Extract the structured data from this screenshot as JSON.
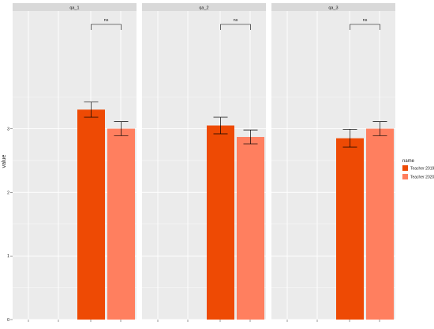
{
  "chart_data": {
    "type": "bar",
    "facets": [
      "qa_1",
      "qa_2",
      "qa_3"
    ],
    "ylabel": "value",
    "ylim": [
      0,
      4.85
    ],
    "yticks": [
      0,
      1,
      2,
      3
    ],
    "legend": {
      "title": "name",
      "position": "right",
      "entries": [
        "Teacher 2019",
        "Teacher 2020"
      ]
    },
    "colors": {
      "Teacher 2019": "#ee4a04",
      "Teacher 2020": "#ff7f5f",
      "panel_bg": "#ebebeb",
      "strip_bg": "#d9d9d9",
      "grid": "#ffffff"
    },
    "grid": true,
    "series": [
      {
        "name": "Teacher 2019",
        "values": [
          3.3,
          3.05,
          2.85
        ],
        "error": [
          0.12,
          0.13,
          0.14
        ]
      },
      {
        "name": "Teacher 2020",
        "values": [
          3.0,
          2.87,
          3.0
        ],
        "error": [
          0.11,
          0.11,
          0.11
        ]
      }
    ],
    "significance": [
      {
        "facet": "qa_1",
        "label": "ns"
      },
      {
        "facet": "qa_2",
        "label": "ns"
      },
      {
        "facet": "qa_3",
        "label": "ns"
      }
    ]
  }
}
